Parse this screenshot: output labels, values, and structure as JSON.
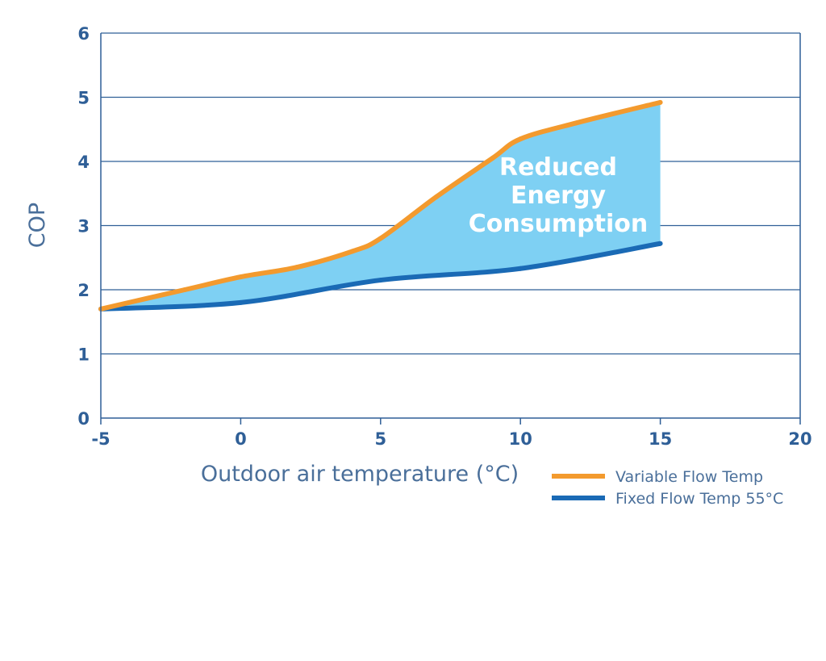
{
  "chart_data": {
    "type": "area",
    "xlabel": "Outdoor air temperature (°C)",
    "ylabel": "COP",
    "xlim": [
      -5,
      20
    ],
    "ylim": [
      0,
      6
    ],
    "xticks": [
      "-5",
      "0",
      "5",
      "10",
      "15",
      "20"
    ],
    "yticks": [
      "0",
      "1",
      "2",
      "3",
      "4",
      "5",
      "6"
    ],
    "grid": "horizontal",
    "legend_position": "bottom-right",
    "series": [
      {
        "name": "Variable Flow Temp",
        "color": "#f39a2e",
        "x": [
          -5,
          -2,
          0,
          2,
          4,
          5,
          7,
          9,
          10,
          12,
          15
        ],
        "y": [
          1.7,
          2.0,
          2.2,
          2.35,
          2.6,
          2.8,
          3.45,
          4.05,
          4.35,
          4.6,
          4.92
        ]
      },
      {
        "name": "Fixed Flow Temp 55°C",
        "color": "#1a6ab5",
        "x": [
          -5,
          0,
          5,
          10,
          15
        ],
        "y": [
          1.7,
          1.8,
          2.15,
          2.33,
          2.72
        ]
      }
    ],
    "fill_between": {
      "color": "#7ed0f3",
      "x_range": [
        -5,
        15
      ]
    },
    "annotation": [
      "Reduced",
      "Energy",
      "Consumption"
    ]
  }
}
